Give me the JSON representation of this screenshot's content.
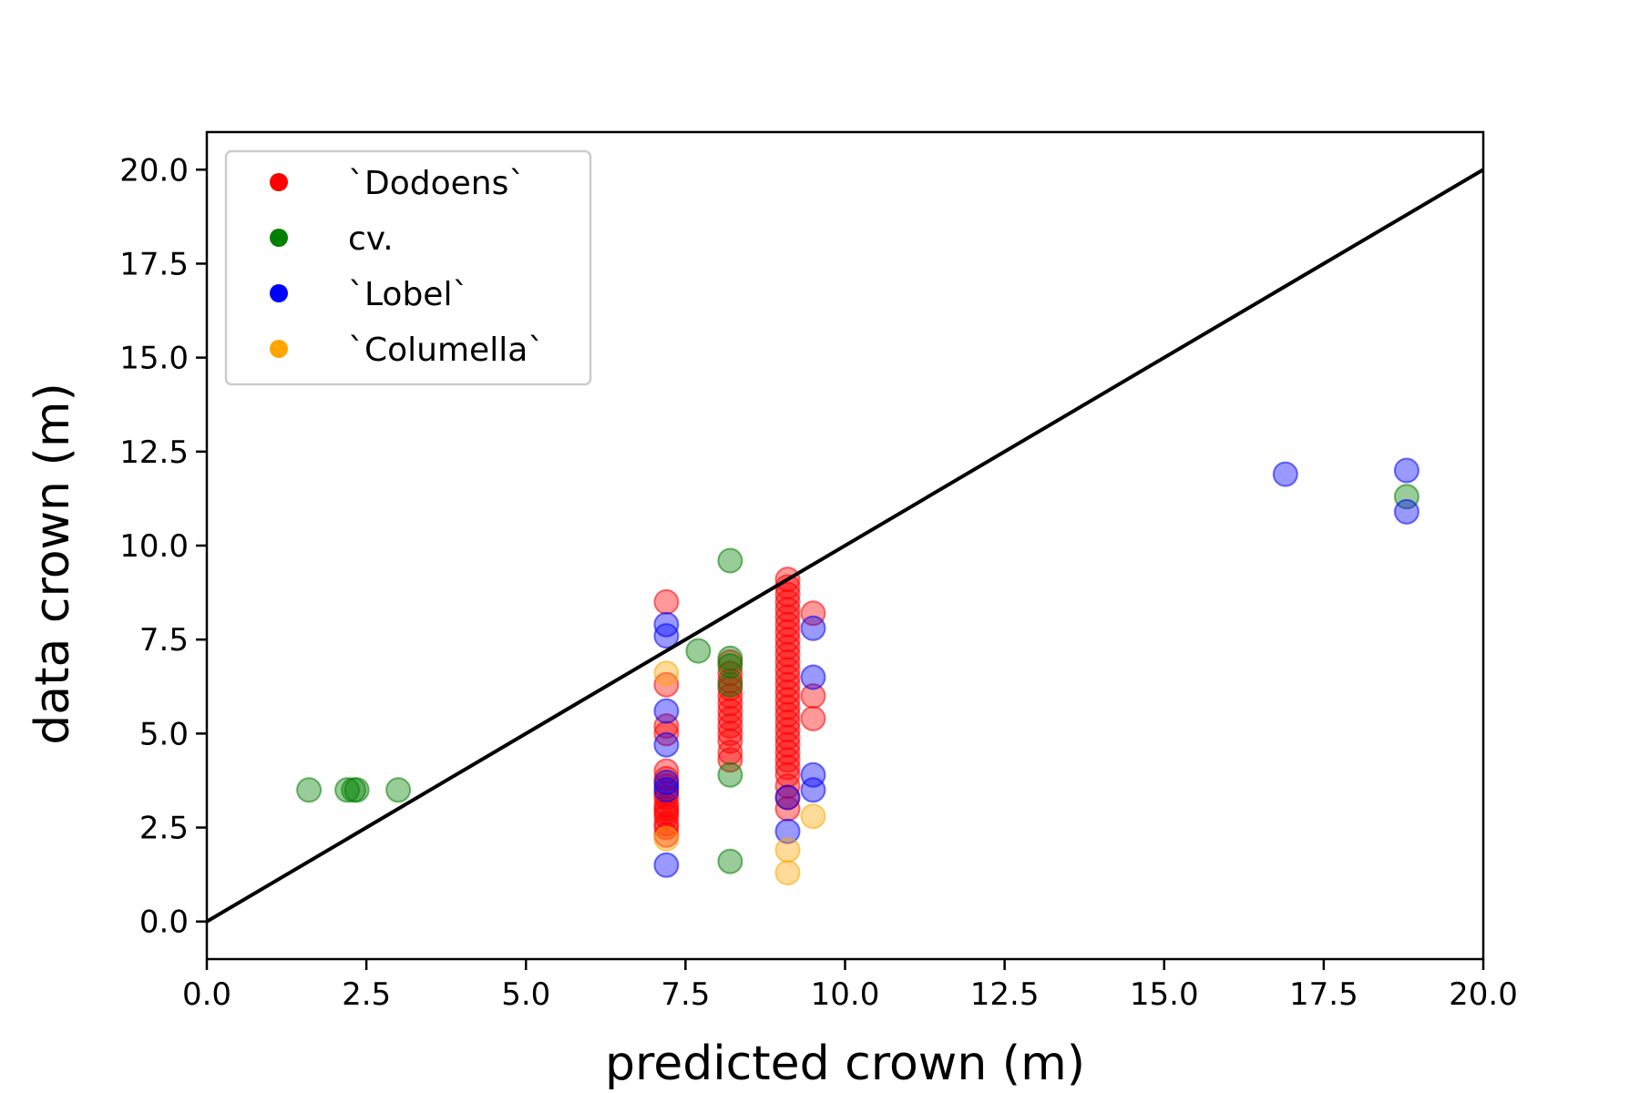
{
  "chart_data": {
    "type": "scatter",
    "title": "",
    "xlabel": "predicted crown (m)",
    "ylabel": "data crown (m)",
    "xlim": [
      0,
      20
    ],
    "ylim": [
      -1,
      21
    ],
    "xticks": [
      "0.0",
      "2.5",
      "5.0",
      "7.5",
      "10.0",
      "12.5",
      "15.0",
      "17.5",
      "20.0"
    ],
    "xtick_values": [
      0,
      2.5,
      5,
      7.5,
      10,
      12.5,
      15,
      17.5,
      20
    ],
    "yticks": [
      "0.0",
      "2.5",
      "5.0",
      "7.5",
      "10.0",
      "12.5",
      "15.0",
      "17.5",
      "20.0"
    ],
    "ytick_values": [
      0,
      2.5,
      5,
      7.5,
      10,
      12.5,
      15,
      17.5,
      20
    ],
    "grid": false,
    "legend_position": "upper-left",
    "reference_line": {
      "x": [
        0,
        20
      ],
      "y": [
        0,
        20
      ],
      "color": "#000000"
    },
    "series": [
      {
        "name": "`Dodoens`",
        "color": "#ff0000",
        "points": [
          [
            7.2,
            2.3
          ],
          [
            7.2,
            2.5
          ],
          [
            7.2,
            2.6
          ],
          [
            7.2,
            2.8
          ],
          [
            7.2,
            2.9
          ],
          [
            7.2,
            3.0
          ],
          [
            7.2,
            3.1
          ],
          [
            7.2,
            3.3
          ],
          [
            7.2,
            3.4
          ],
          [
            7.2,
            3.6
          ],
          [
            7.2,
            3.8
          ],
          [
            7.2,
            4.0
          ],
          [
            7.2,
            5.0
          ],
          [
            7.2,
            5.2
          ],
          [
            7.2,
            6.3
          ],
          [
            7.2,
            8.5
          ],
          [
            8.2,
            4.3
          ],
          [
            8.2,
            4.5
          ],
          [
            8.2,
            4.8
          ],
          [
            8.2,
            5.0
          ],
          [
            8.2,
            5.2
          ],
          [
            8.2,
            5.4
          ],
          [
            8.2,
            5.6
          ],
          [
            8.2,
            5.8
          ],
          [
            8.2,
            6.0
          ],
          [
            8.2,
            6.2
          ],
          [
            8.2,
            6.4
          ],
          [
            8.2,
            6.6
          ],
          [
            8.2,
            6.9
          ],
          [
            9.1,
            3.0
          ],
          [
            9.1,
            3.3
          ],
          [
            9.1,
            3.6
          ],
          [
            9.1,
            3.9
          ],
          [
            9.1,
            4.1
          ],
          [
            9.1,
            4.3
          ],
          [
            9.1,
            4.5
          ],
          [
            9.1,
            4.7
          ],
          [
            9.1,
            4.9
          ],
          [
            9.1,
            5.1
          ],
          [
            9.1,
            5.3
          ],
          [
            9.1,
            5.5
          ],
          [
            9.1,
            5.7
          ],
          [
            9.1,
            5.9
          ],
          [
            9.1,
            6.1
          ],
          [
            9.1,
            6.3
          ],
          [
            9.1,
            6.5
          ],
          [
            9.1,
            6.7
          ],
          [
            9.1,
            6.9
          ],
          [
            9.1,
            7.1
          ],
          [
            9.1,
            7.3
          ],
          [
            9.1,
            7.5
          ],
          [
            9.1,
            7.7
          ],
          [
            9.1,
            7.9
          ],
          [
            9.1,
            8.1
          ],
          [
            9.1,
            8.3
          ],
          [
            9.1,
            8.5
          ],
          [
            9.1,
            8.7
          ],
          [
            9.1,
            8.9
          ],
          [
            9.1,
            9.1
          ],
          [
            9.5,
            5.4
          ],
          [
            9.5,
            6.0
          ],
          [
            9.5,
            8.2
          ]
        ]
      },
      {
        "name": "cv.",
        "color": "#008000",
        "points": [
          [
            1.6,
            3.5
          ],
          [
            2.2,
            3.5
          ],
          [
            2.3,
            3.5
          ],
          [
            2.35,
            3.5
          ],
          [
            3.0,
            3.5
          ],
          [
            7.7,
            7.2
          ],
          [
            8.2,
            1.6
          ],
          [
            8.2,
            3.9
          ],
          [
            8.2,
            6.3
          ],
          [
            8.2,
            6.8
          ],
          [
            8.2,
            7.0
          ],
          [
            8.2,
            9.6
          ],
          [
            18.8,
            11.3
          ]
        ]
      },
      {
        "name": "`Lobel`",
        "color": "#0000ff",
        "points": [
          [
            7.2,
            1.5
          ],
          [
            7.2,
            3.5
          ],
          [
            7.2,
            3.7
          ],
          [
            7.2,
            4.7
          ],
          [
            7.2,
            5.6
          ],
          [
            7.2,
            7.6
          ],
          [
            7.2,
            7.9
          ],
          [
            9.1,
            2.4
          ],
          [
            9.1,
            3.3
          ],
          [
            9.5,
            3.5
          ],
          [
            9.5,
            3.9
          ],
          [
            9.5,
            6.5
          ],
          [
            9.5,
            7.8
          ],
          [
            16.9,
            11.9
          ],
          [
            18.8,
            10.9
          ],
          [
            18.8,
            12.0
          ]
        ]
      },
      {
        "name": "`Columella`",
        "color": "#ffa500",
        "points": [
          [
            7.2,
            2.2
          ],
          [
            7.2,
            6.6
          ],
          [
            9.1,
            1.3
          ],
          [
            9.1,
            1.9
          ],
          [
            9.5,
            2.8
          ]
        ]
      }
    ]
  }
}
